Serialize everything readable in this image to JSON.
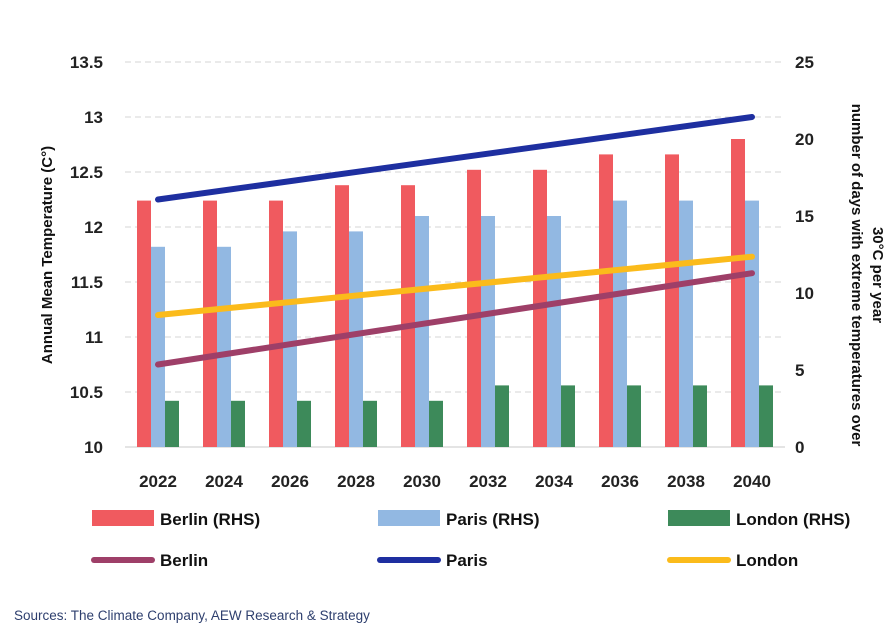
{
  "chart_data": {
    "type": "bar",
    "categories": [
      "2022",
      "2024",
      "2026",
      "2028",
      "2030",
      "2032",
      "2034",
      "2036",
      "2038",
      "2040"
    ],
    "bar_series": [
      {
        "name": "Berlin (RHS)",
        "color": "#f05a5f",
        "values": [
          16,
          16,
          16,
          17,
          17,
          18,
          18,
          19,
          19,
          20
        ]
      },
      {
        "name": "Paris (RHS)",
        "color": "#92b8e2",
        "values": [
          13,
          13,
          14,
          14,
          15,
          15,
          15,
          16,
          16,
          16
        ]
      },
      {
        "name": "London (RHS)",
        "color": "#3d8a5a",
        "values": [
          3,
          3,
          3,
          3,
          3,
          4,
          4,
          4,
          4,
          4
        ]
      }
    ],
    "line_series": [
      {
        "name": "Berlin",
        "color": "#9e3f68",
        "start": 10.75,
        "end": 11.58
      },
      {
        "name": "Paris",
        "color": "#1e2fa0",
        "start": 12.25,
        "end": 13.0
      },
      {
        "name": "London",
        "color": "#fbbb1b",
        "start": 11.2,
        "end": 11.73
      }
    ],
    "y_left": {
      "label": "Annual Mean Temperature (C°)",
      "min": 10,
      "max": 13.5,
      "ticks": [
        "10",
        "10.5",
        "11",
        "11.5",
        "12",
        "12.5",
        "13",
        "13.5"
      ]
    },
    "y_right": {
      "label_line1": "number of days with extreme temperatures over",
      "label_line2": "30°C per year",
      "min": 0,
      "max": 25,
      "ticks": [
        "0",
        "5",
        "10",
        "15",
        "20",
        "25"
      ]
    },
    "gridlines": true,
    "legend_position": "bottom"
  },
  "source": "Sources: The Climate Company, AEW Research & Strategy"
}
